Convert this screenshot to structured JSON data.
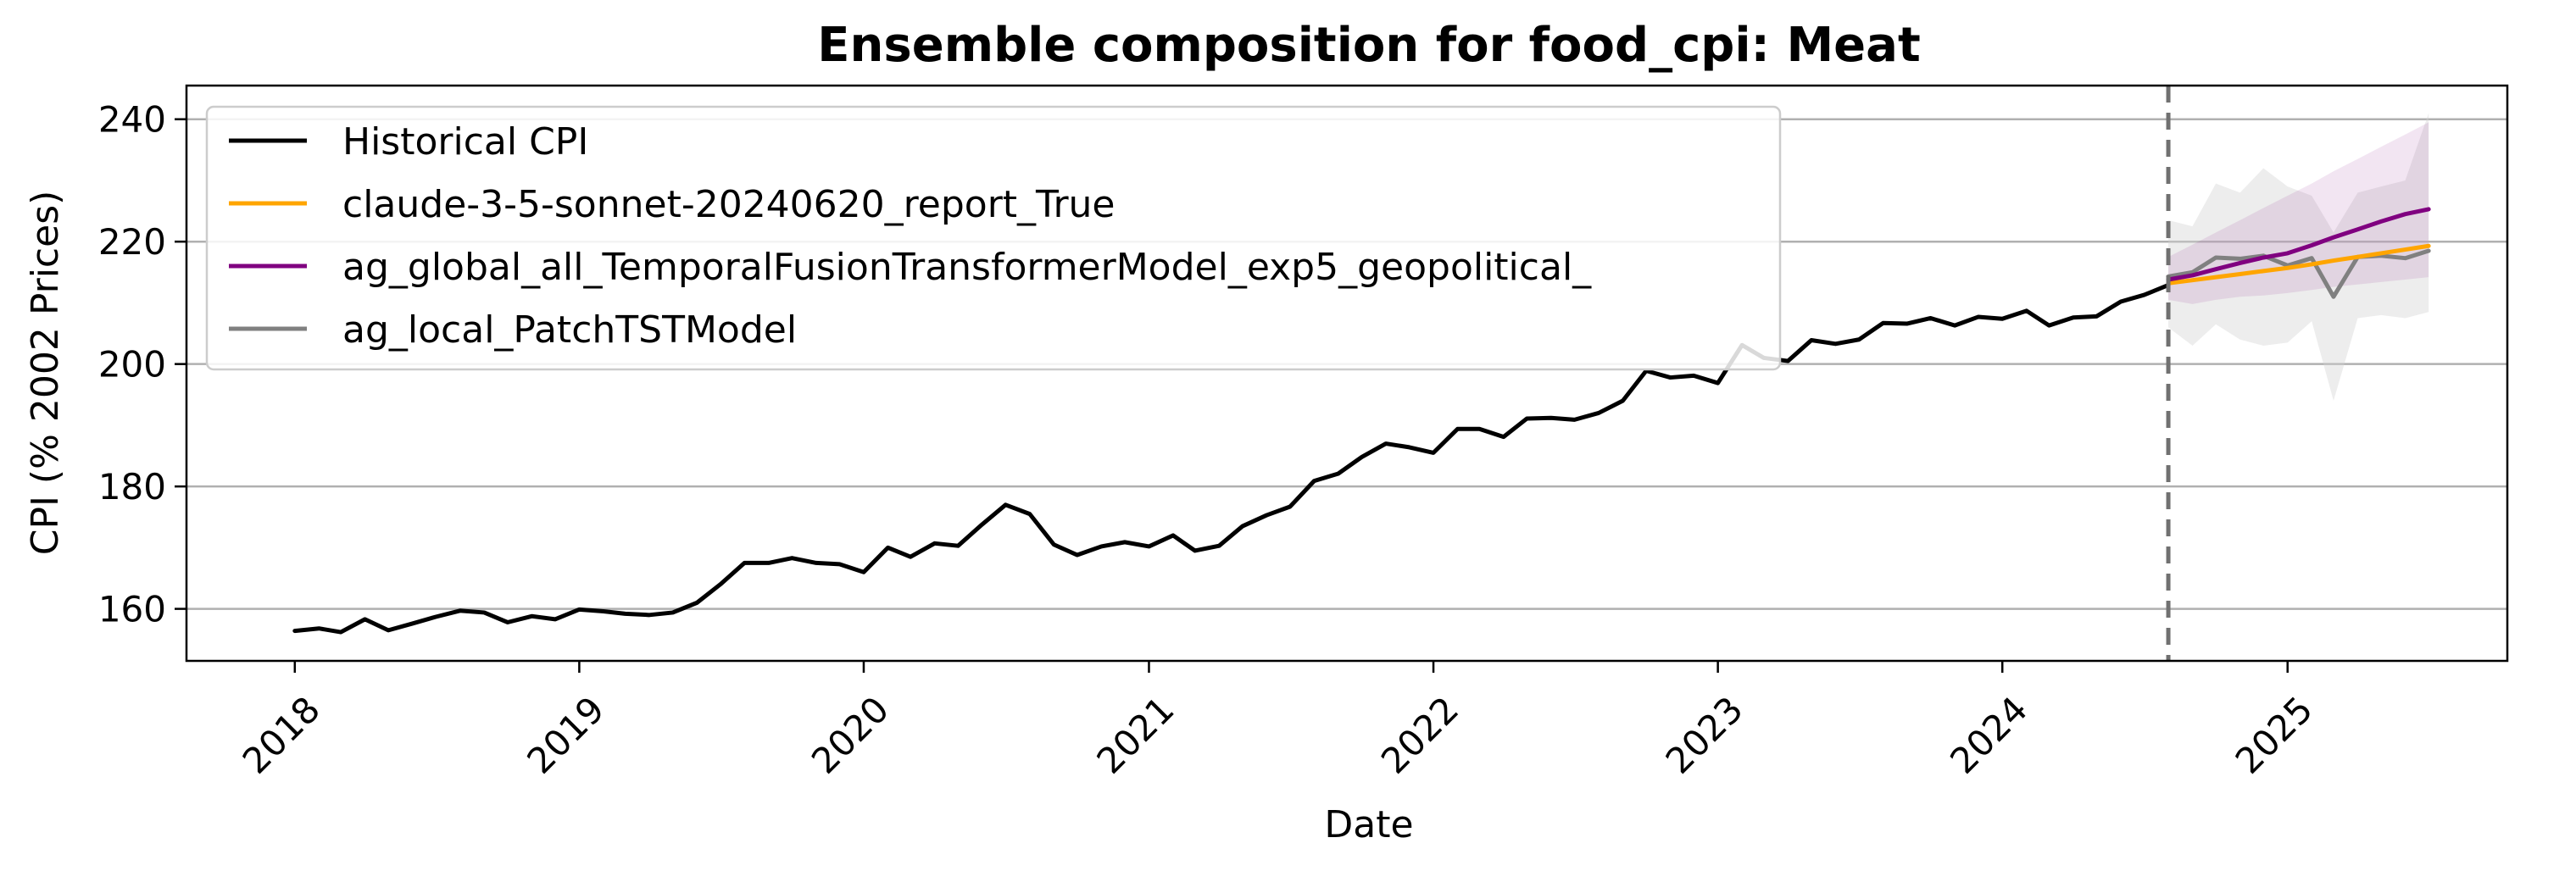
{
  "chart_data": {
    "type": "line",
    "title": "Ensemble composition for food_cpi: Meat",
    "xlabel": "Date",
    "ylabel": "CPI (% 2002 Prices)",
    "xlim": [
      "2017-08-15",
      "2025-10-10"
    ],
    "ylim": [
      151.5,
      245.5
    ],
    "x_ticks": [
      "2018",
      "2019",
      "2020",
      "2021",
      "2022",
      "2023",
      "2024",
      "2025"
    ],
    "y_ticks": [
      160,
      180,
      200,
      220,
      240
    ],
    "grid": "horizontal",
    "legend_position": "upper-left",
    "forecast_start": "2024-08-01",
    "series": [
      {
        "name": "Historical CPI",
        "color": "#000000",
        "x": [
          "2018-01-01",
          "2018-02-01",
          "2018-03-01",
          "2018-04-01",
          "2018-05-01",
          "2018-06-01",
          "2018-07-01",
          "2018-08-01",
          "2018-09-01",
          "2018-10-01",
          "2018-11-01",
          "2018-12-01",
          "2019-01-01",
          "2019-02-01",
          "2019-03-01",
          "2019-04-01",
          "2019-05-01",
          "2019-06-01",
          "2019-07-01",
          "2019-08-01",
          "2019-09-01",
          "2019-10-01",
          "2019-11-01",
          "2019-12-01",
          "2020-01-01",
          "2020-02-01",
          "2020-03-01",
          "2020-04-01",
          "2020-05-01",
          "2020-06-01",
          "2020-07-01",
          "2020-08-01",
          "2020-09-01",
          "2020-10-01",
          "2020-11-01",
          "2020-12-01",
          "2021-01-01",
          "2021-02-01",
          "2021-03-01",
          "2021-04-01",
          "2021-05-01",
          "2021-06-01",
          "2021-07-01",
          "2021-08-01",
          "2021-09-01",
          "2021-10-01",
          "2021-11-01",
          "2021-12-01",
          "2022-01-01",
          "2022-02-01",
          "2022-03-01",
          "2022-04-01",
          "2022-05-01",
          "2022-06-01",
          "2022-07-01",
          "2022-08-01",
          "2022-09-01",
          "2022-10-01",
          "2022-11-01",
          "2022-12-01",
          "2023-01-01",
          "2023-02-01",
          "2023-03-01",
          "2023-04-01",
          "2023-05-01",
          "2023-06-01",
          "2023-07-01",
          "2023-08-01",
          "2023-09-01",
          "2023-10-01",
          "2023-11-01",
          "2023-12-01",
          "2024-01-01",
          "2024-02-01",
          "2024-03-01",
          "2024-04-01",
          "2024-05-01",
          "2024-06-01",
          "2024-07-01",
          "2024-08-01"
        ],
        "values": [
          156.4,
          156.8,
          156.2,
          158.3,
          156.5,
          157.6,
          158.7,
          159.7,
          159.4,
          157.8,
          158.8,
          158.3,
          159.9,
          159.6,
          159.2,
          159.0,
          159.4,
          161.0,
          164.0,
          167.5,
          167.5,
          168.3,
          167.5,
          167.3,
          166.0,
          170.0,
          168.5,
          170.7,
          170.3,
          173.8,
          177.0,
          175.5,
          170.5,
          168.8,
          170.2,
          170.9,
          170.2,
          172.0,
          169.5,
          170.3,
          173.5,
          175.3,
          176.7,
          180.9,
          182.1,
          184.8,
          187.0,
          186.4,
          185.5,
          189.4,
          189.4,
          188.1,
          191.1,
          191.2,
          190.9,
          192.0,
          194.0,
          198.9,
          197.8,
          198.1,
          196.9,
          203.1,
          201.0,
          200.5,
          203.9,
          203.3,
          204.0,
          206.7,
          206.6,
          207.5,
          206.3,
          207.7,
          207.4,
          208.7,
          206.3,
          207.6,
          207.8,
          210.2,
          211.3,
          212.9
        ]
      },
      {
        "name": "claude-3-5-sonnet-20240620_report_True",
        "color": "#ffa500",
        "x": [
          "2024-08-01",
          "2024-09-01",
          "2024-10-01",
          "2024-11-01",
          "2024-12-01",
          "2025-01-01",
          "2025-02-01",
          "2025-03-01",
          "2025-04-01",
          "2025-05-01",
          "2025-06-01",
          "2025-07-01"
        ],
        "values": [
          213.2,
          213.7,
          214.2,
          214.7,
          215.2,
          215.7,
          216.3,
          216.9,
          217.5,
          218.1,
          218.7,
          219.3
        ]
      },
      {
        "name": "ag_global_all_TemporalFusionTransformerModel_exp5_geopolitical_",
        "color": "#800080",
        "x": [
          "2024-08-01",
          "2024-09-01",
          "2024-10-01",
          "2024-11-01",
          "2024-12-01",
          "2025-01-01",
          "2025-02-01",
          "2025-03-01",
          "2025-04-01",
          "2025-05-01",
          "2025-06-01",
          "2025-07-01"
        ],
        "values": [
          213.8,
          214.5,
          215.5,
          216.5,
          217.4,
          218.1,
          219.4,
          220.7,
          222.0,
          223.3,
          224.5,
          225.3
        ],
        "band_lower": [
          210.5,
          209.8,
          210.5,
          211.0,
          211.2,
          211.6,
          212.1,
          212.6,
          213.0,
          213.4,
          213.8,
          214.2
        ],
        "band_upper": [
          217.5,
          219.5,
          221.5,
          223.5,
          225.5,
          227.5,
          229.5,
          231.5,
          233.5,
          235.5,
          237.5,
          239.5
        ]
      },
      {
        "name": "ag_local_PatchTSTModel",
        "color": "#808080",
        "x": [
          "2024-08-01",
          "2024-09-01",
          "2024-10-01",
          "2024-11-01",
          "2024-12-01",
          "2025-01-01",
          "2025-02-01",
          "2025-03-01",
          "2025-04-01",
          "2025-05-01",
          "2025-06-01",
          "2025-07-01"
        ],
        "values": [
          214.3,
          215.0,
          217.4,
          217.2,
          217.7,
          216.1,
          217.3,
          211.0,
          217.5,
          217.7,
          217.3,
          218.5
        ],
        "band_lower": [
          206.0,
          203.0,
          206.5,
          204.0,
          203.0,
          203.5,
          207.0,
          194.0,
          207.5,
          208.0,
          207.5,
          208.5
        ],
        "band_upper": [
          223.5,
          222.5,
          229.5,
          228.0,
          232.0,
          229.0,
          227.5,
          221.5,
          228.0,
          229.0,
          230.0,
          241.0
        ]
      }
    ]
  }
}
